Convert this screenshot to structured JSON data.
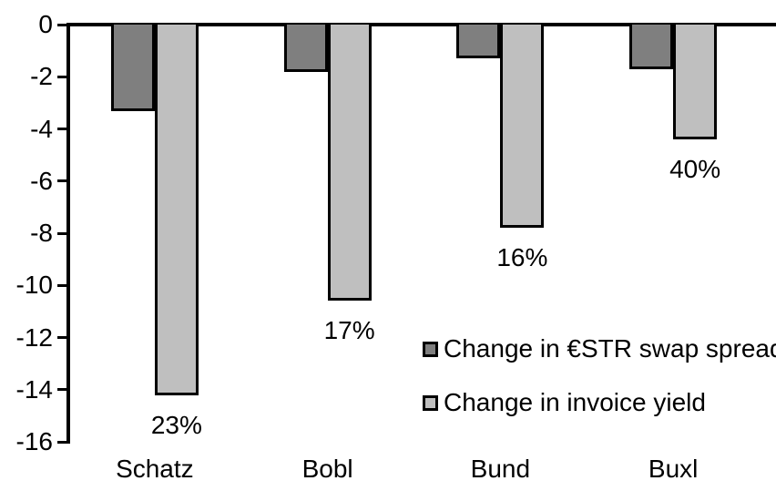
{
  "chart_data": {
    "type": "bar",
    "title": "",
    "xlabel": "",
    "ylabel": "",
    "categories": [
      "Schatz",
      "Bobl",
      "Bund",
      "Buxl"
    ],
    "series": [
      {
        "name": "Change in €STR swap spread",
        "color": "#7f7f7f",
        "values": [
          -3.3,
          -1.8,
          -1.3,
          -1.7
        ]
      },
      {
        "name": "Change in invoice yield",
        "color": "#bfbfbf",
        "values": [
          -14.2,
          -10.6,
          -7.8,
          -4.4
        ],
        "data_labels": [
          "23%",
          "17%",
          "16%",
          "40%"
        ]
      }
    ],
    "y_axis": {
      "min": -16,
      "max": 0,
      "tick_step": 2,
      "tick_labels": [
        "0",
        "-2",
        "-4",
        "-6",
        "-8",
        "-10",
        "-12",
        "-14",
        "-16"
      ]
    },
    "grid": false,
    "legend_position": "inside-right",
    "bar_border_color": "#000000",
    "axis_color": "#000000",
    "background_color": "#ffffff"
  }
}
